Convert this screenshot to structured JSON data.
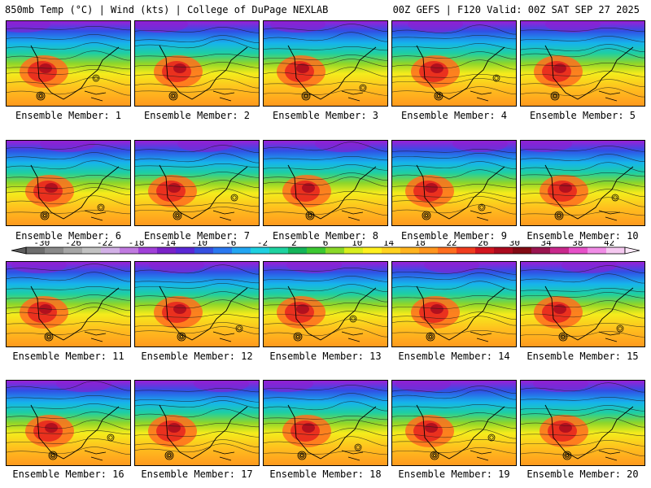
{
  "header": {
    "left_title": "850mb Temp (°C) | Wind (kts) | College of DuPage NEXLAB",
    "right_title": "00Z GEFS | F120 Valid: 00Z SAT SEP 27 2025"
  },
  "panel_label_prefix": "Ensemble Member: ",
  "members": [
    "1",
    "2",
    "3",
    "4",
    "5",
    "6",
    "7",
    "8",
    "9",
    "10",
    "11",
    "12",
    "13",
    "14",
    "15",
    "16",
    "17",
    "18",
    "19",
    "20"
  ],
  "colorbar": {
    "ticks": [
      "-30",
      "-26",
      "-22",
      "-18",
      "-14",
      "-10",
      "-6",
      "-2",
      "2",
      "6",
      "10",
      "14",
      "18",
      "22",
      "26",
      "30",
      "34",
      "38",
      "42"
    ],
    "colors": [
      "#6e6e6e",
      "#8a8a8a",
      "#a6a6a6",
      "#c2c2c2",
      "#d2b0e6",
      "#c07ae0",
      "#a040d8",
      "#7a22c8",
      "#5a28d6",
      "#3650e0",
      "#2a78f0",
      "#22a6f2",
      "#1ed0e0",
      "#1ed2a0",
      "#14b45a",
      "#3cc832",
      "#8ad828",
      "#d8ee1e",
      "#fff01e",
      "#ffd21e",
      "#ffb41e",
      "#ff961e",
      "#ff6e1e",
      "#f03c1e",
      "#d2141e",
      "#aa0a1e",
      "#820a14",
      "#9a1450",
      "#c8288c",
      "#e650c8",
      "#f08ce6",
      "#f5c8f0"
    ]
  }
}
